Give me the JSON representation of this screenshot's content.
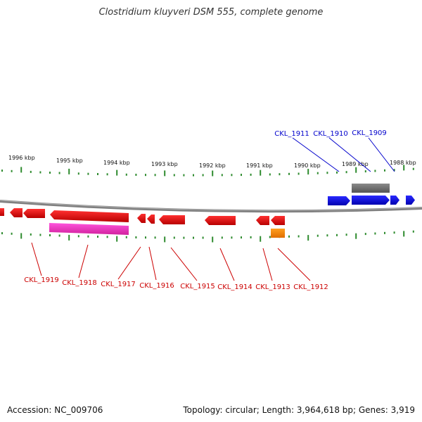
{
  "title": "Clostridium kluyveri DSM 555, complete genome",
  "footer": {
    "accession": "Accession: NC_009706",
    "summary": "Topology: circular; Length: 3,964,618 bp; Genes: 3,919"
  },
  "colors": {
    "forward_gene": "#0000ee",
    "reverse_gene": "#ee0000",
    "forward_label": "#0000cc",
    "reverse_label": "#cc0000",
    "tick": "#2e8b2e",
    "backbone": "#808080",
    "rna": "#ff7f00",
    "pseudo": "#ff44cc",
    "repeat": "#666666"
  },
  "kbp_labels": [
    "1996 kbp",
    "1995 kbp",
    "1994 kbp",
    "1993 kbp",
    "1992 kbp",
    "1991 kbp",
    "1990 kbp",
    "1989 kbp",
    "1988 kbp"
  ],
  "forward_labels": [
    "CKL_1911",
    "CKL_1910",
    "CKL_1909"
  ],
  "reverse_labels": [
    "CKL_1919",
    "CKL_1918",
    "CKL_1917",
    "CKL_1916",
    "CKL_1915",
    "CKL_1914",
    "CKL_1913",
    "CKL_1912"
  ]
}
